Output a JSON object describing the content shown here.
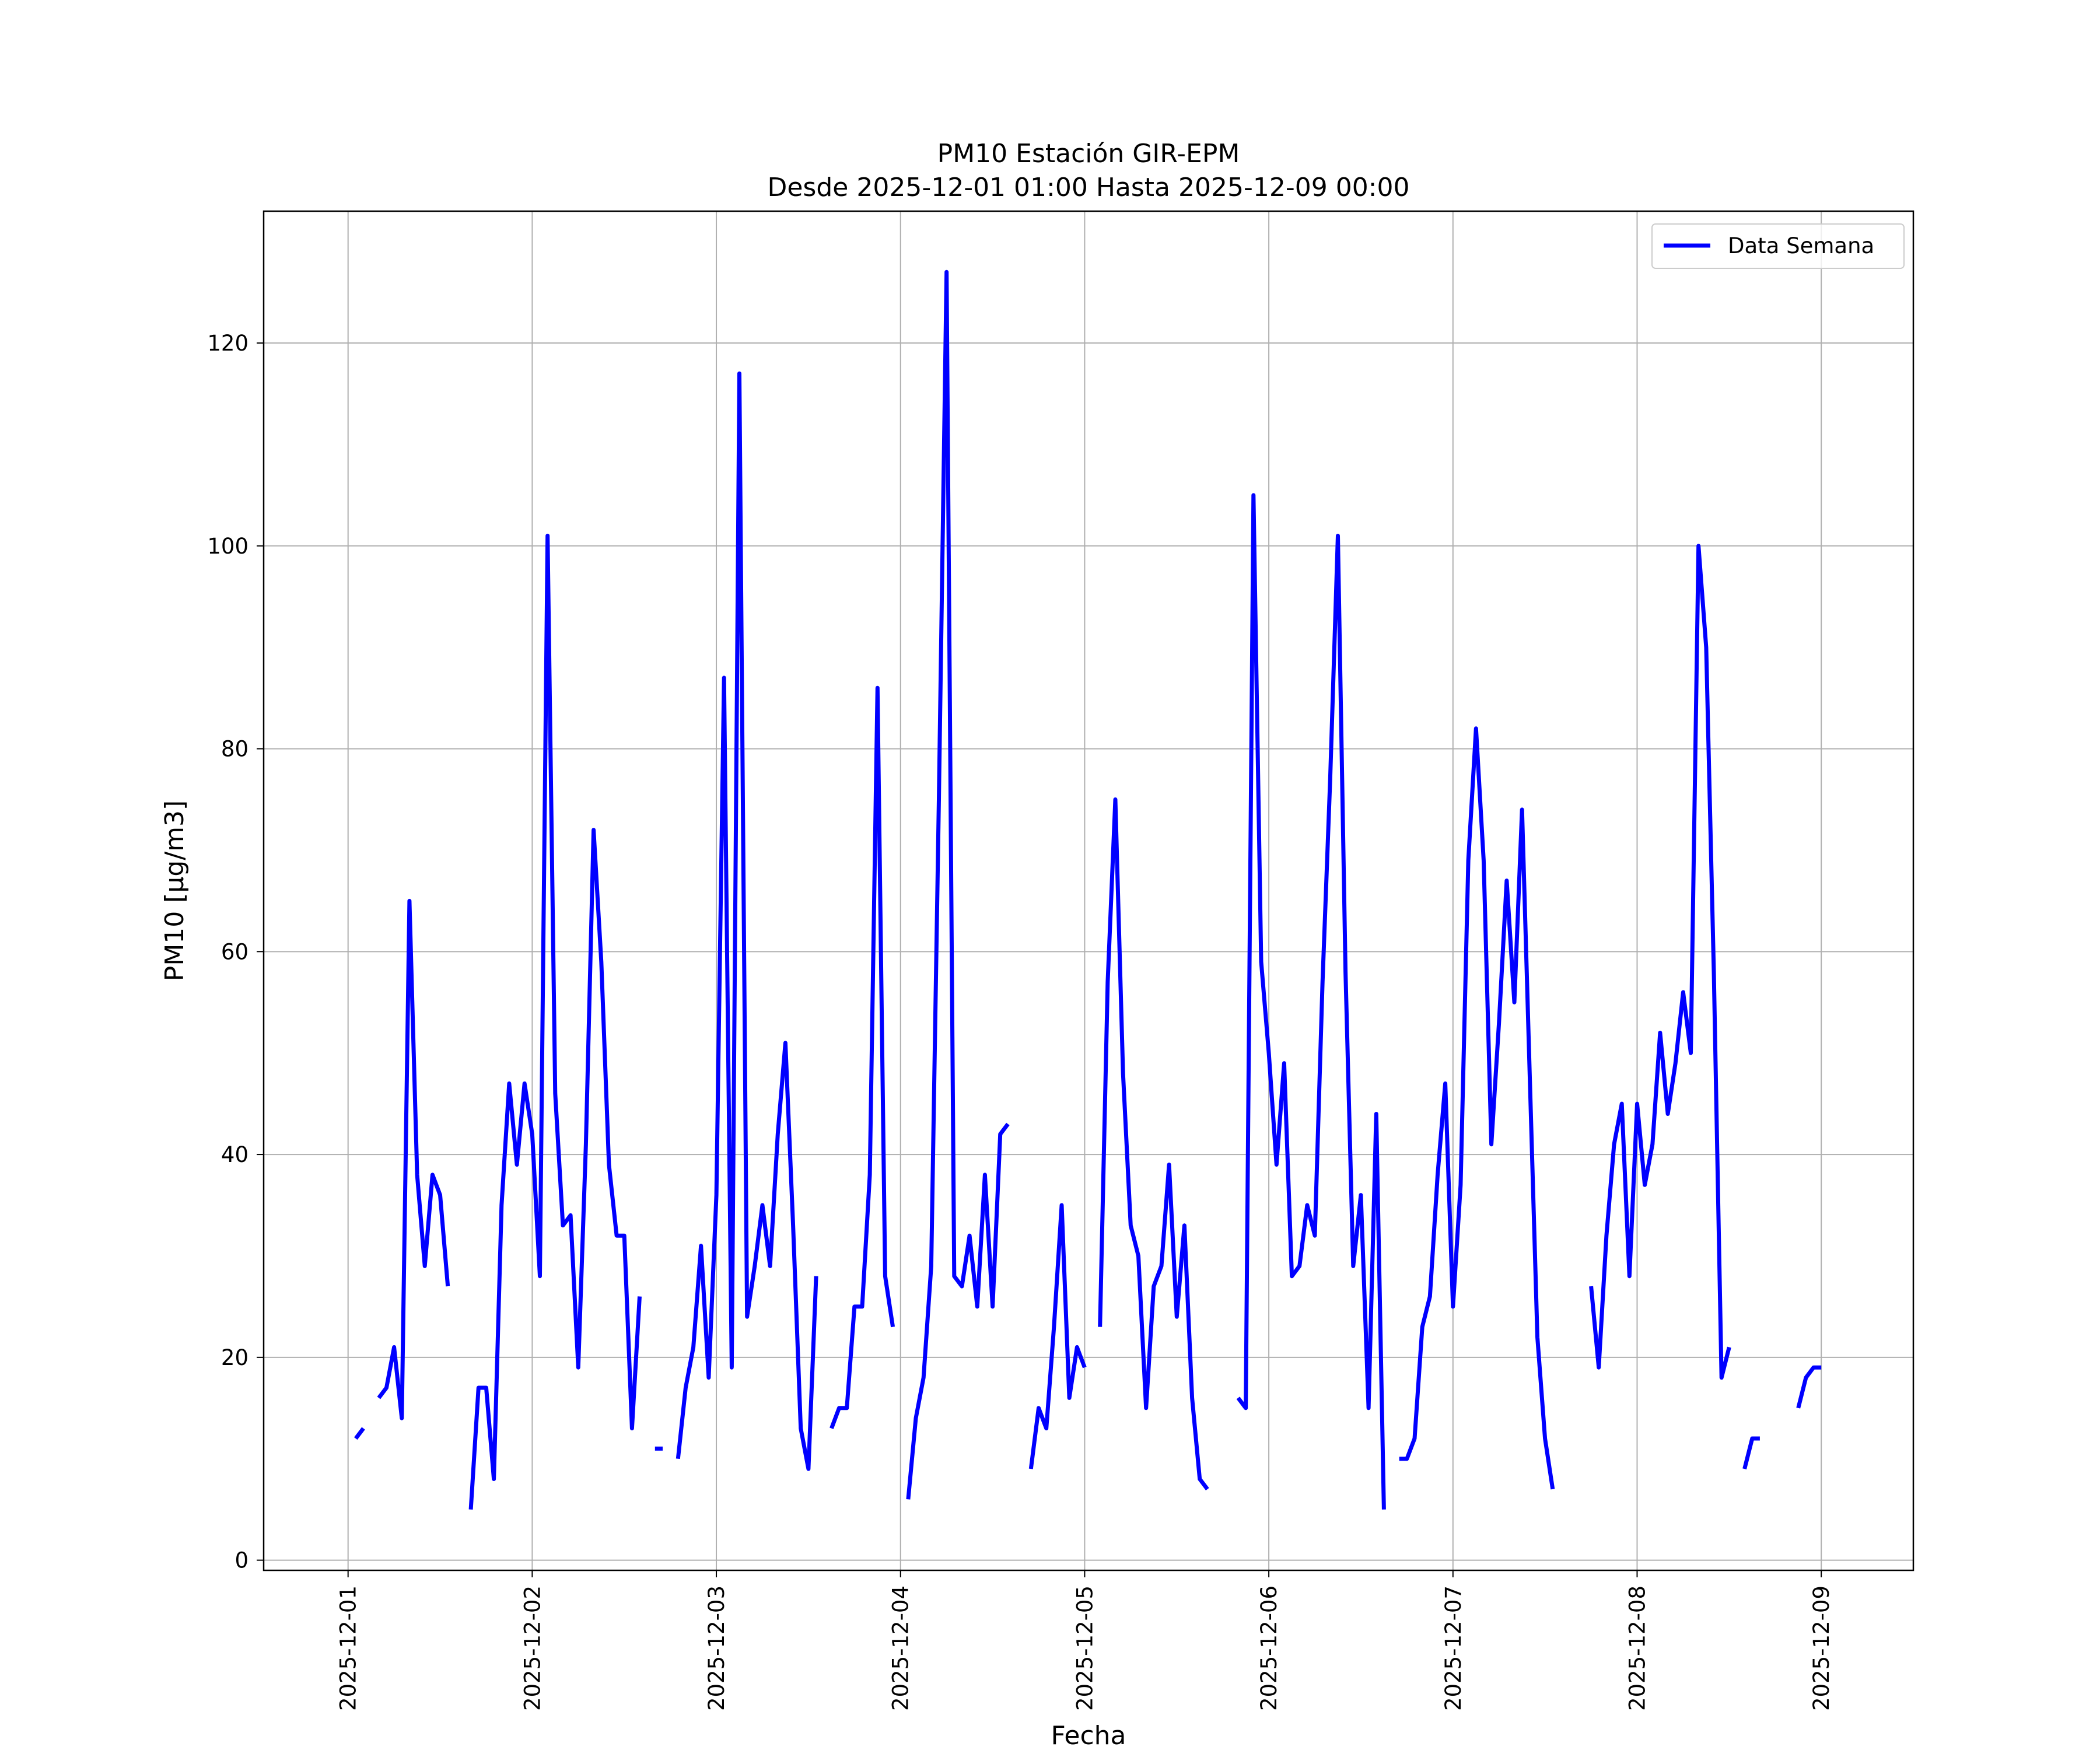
{
  "chart_data": {
    "type": "line",
    "title": "PM10 Estación GIR-EPM",
    "subtitle": "Desde 2025-12-01 01:00 Hasta 2025-12-09 00:00",
    "xlabel": "Fecha",
    "ylabel": "PM10 [μg/m3]",
    "xlim": [
      "2025-11-30 13:00",
      "2025-12-09 12:00"
    ],
    "ylim": [
      -1,
      133
    ],
    "xticks": [
      "2025-12-01",
      "2025-12-02",
      "2025-12-03",
      "2025-12-04",
      "2025-12-05",
      "2025-12-06",
      "2025-12-07",
      "2025-12-08",
      "2025-12-09"
    ],
    "yticks": [
      0,
      20,
      40,
      60,
      80,
      100,
      120
    ],
    "grid": true,
    "legend_position": "top-right",
    "line_color": "#0000ff",
    "series": [
      {
        "name": "Data Semana",
        "start": "2025-12-01 01:00",
        "interval": "1 hour",
        "values": [
          12,
          13,
          null,
          16,
          17,
          21,
          14,
          65,
          38,
          29,
          38,
          36,
          27,
          null,
          null,
          5,
          17,
          17,
          8,
          35,
          47,
          39,
          47,
          42,
          28,
          101,
          46,
          33,
          34,
          19,
          41,
          72,
          59,
          39,
          32,
          32,
          13,
          26,
          null,
          11,
          11,
          null,
          10,
          17,
          21,
          31,
          18,
          36,
          87,
          19,
          117,
          24,
          29,
          35,
          29,
          42,
          51,
          33,
          13,
          9,
          28,
          null,
          13,
          15,
          15,
          25,
          25,
          38,
          86,
          28,
          23,
          null,
          6,
          14,
          18,
          29,
          75,
          127,
          28,
          27,
          32,
          25,
          38,
          25,
          42,
          43,
          null,
          null,
          9,
          15,
          13,
          23,
          35,
          16,
          21,
          19,
          null,
          23,
          57,
          75,
          48,
          33,
          30,
          15,
          27,
          29,
          39,
          24,
          33,
          16,
          8,
          7,
          null,
          null,
          null,
          16,
          15,
          105,
          59,
          50,
          39,
          49,
          28,
          29,
          35,
          32,
          57,
          77,
          101,
          58,
          29,
          36,
          15,
          44,
          5,
          null,
          10,
          10,
          12,
          23,
          26,
          38,
          47,
          25,
          37,
          69,
          82,
          69,
          41,
          53,
          67,
          55,
          74,
          48,
          22,
          12,
          7,
          null,
          null,
          null,
          null,
          27,
          19,
          32,
          41,
          45,
          28,
          45,
          37,
          41,
          52,
          44,
          49,
          56,
          50,
          100,
          90,
          58,
          18,
          21,
          null,
          9,
          12,
          12,
          null,
          null,
          null,
          null,
          15,
          18,
          19,
          19
        ]
      }
    ]
  }
}
